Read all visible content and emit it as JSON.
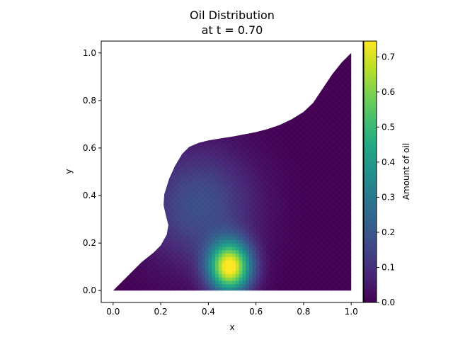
{
  "chart_data": {
    "type": "heatmap",
    "title_lines": [
      "Oil Distribution",
      "at t = 0.70"
    ],
    "xlabel": "x",
    "ylabel": "y",
    "xlim": [
      -0.05,
      1.05
    ],
    "ylim": [
      -0.05,
      1.05
    ],
    "x_ticks": [
      0.0,
      0.2,
      0.4,
      0.6,
      0.8,
      1.0
    ],
    "x_tick_labels": [
      "0.0",
      "0.2",
      "0.4",
      "0.6",
      "0.8",
      "1.0"
    ],
    "y_ticks": [
      0.0,
      0.2,
      0.4,
      0.6,
      0.8,
      1.0
    ],
    "y_tick_labels": [
      "0.0",
      "0.2",
      "0.4",
      "0.6",
      "0.8",
      "1.0"
    ],
    "colorbar": {
      "label": "Amount of oil",
      "range": [
        0.0,
        0.745
      ],
      "ticks": [
        0.0,
        0.1,
        0.2,
        0.3,
        0.4,
        0.5,
        0.6,
        0.7
      ],
      "tick_labels": [
        "0.0",
        "0.1",
        "0.2",
        "0.3",
        "0.4",
        "0.5",
        "0.6",
        "0.7"
      ],
      "colormap": "viridis"
    },
    "domain_boundary": [
      [
        0.0,
        0.0
      ],
      [
        1.0,
        0.0
      ],
      [
        1.0,
        1.0
      ],
      [
        0.96,
        0.96
      ],
      [
        0.92,
        0.91
      ],
      [
        0.88,
        0.85
      ],
      [
        0.84,
        0.79
      ],
      [
        0.8,
        0.752
      ],
      [
        0.75,
        0.721
      ],
      [
        0.7,
        0.697
      ],
      [
        0.65,
        0.68
      ],
      [
        0.6,
        0.667
      ],
      [
        0.55,
        0.657
      ],
      [
        0.5,
        0.648
      ],
      [
        0.45,
        0.64
      ],
      [
        0.4,
        0.632
      ],
      [
        0.36,
        0.622
      ],
      [
        0.32,
        0.605
      ],
      [
        0.29,
        0.575
      ],
      [
        0.26,
        0.525
      ],
      [
        0.235,
        0.47
      ],
      [
        0.215,
        0.405
      ],
      [
        0.212,
        0.36
      ],
      [
        0.222,
        0.315
      ],
      [
        0.232,
        0.275
      ],
      [
        0.225,
        0.235
      ],
      [
        0.2,
        0.19
      ],
      [
        0.17,
        0.16
      ],
      [
        0.12,
        0.12
      ],
      [
        0.06,
        0.06
      ]
    ],
    "oil_field": {
      "peaks": [
        {
          "x": 0.49,
          "y": 0.1,
          "amplitude": 0.745,
          "spread_x": 0.062,
          "spread_y": 0.075
        },
        {
          "x": 0.36,
          "y": 0.36,
          "amplitude": 0.18,
          "spread_x": 0.16,
          "spread_y": 0.17
        }
      ]
    }
  }
}
